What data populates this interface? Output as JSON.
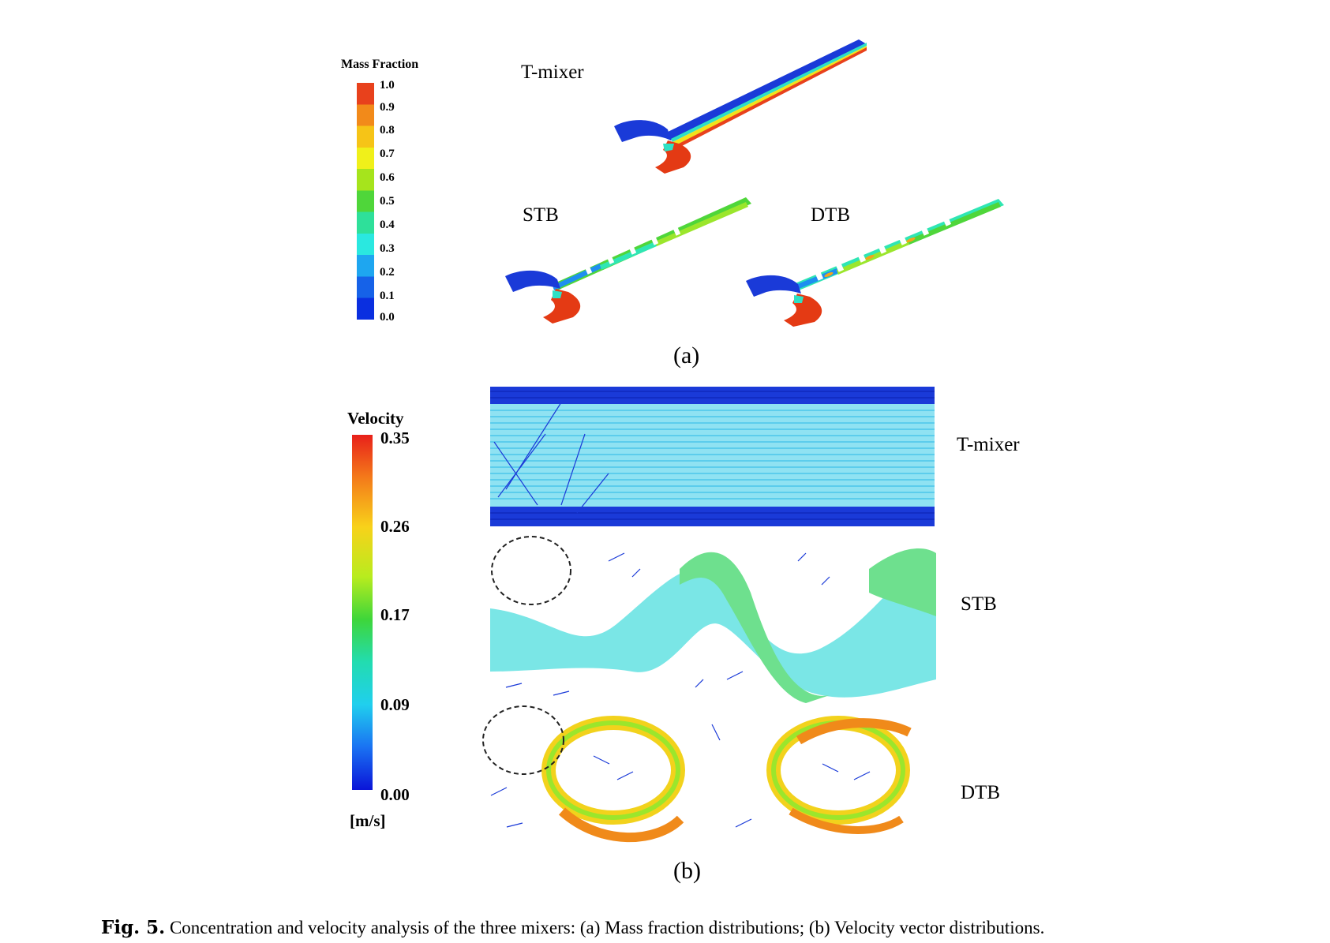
{
  "panel_a": {
    "colorbar": {
      "title": "Mass Fraction",
      "ticks": [
        "1.0",
        "0.9",
        "0.8",
        "0.7",
        "0.6",
        "0.5",
        "0.4",
        "0.3",
        "0.2",
        "0.1",
        "0.0"
      ]
    },
    "mixers": [
      "T-mixer",
      "STB",
      "DTB"
    ],
    "label": "(a)"
  },
  "panel_b": {
    "colorbar": {
      "title": "Velocity",
      "ticks": [
        "0.35",
        "0.26",
        "0.17",
        "0.09",
        "0.00"
      ],
      "unit": "[m/s]"
    },
    "mixers": [
      "T-mixer",
      "STB",
      "DTB"
    ],
    "label": "(b)"
  },
  "caption": {
    "prefix": "Fig. 5.",
    "text": "Concentration and velocity analysis of the three mixers: (a) Mass fraction distributions; (b) Velocity vector distributions."
  },
  "colors": {
    "scale": [
      "#0a2fe0",
      "#1e7ff0",
      "#27d6ef",
      "#2fe6b4",
      "#4ee24c",
      "#9be62c",
      "#f2f21c",
      "#f4a41a",
      "#ec3a10"
    ],
    "low": "#1a3ad8",
    "high": "#e43a14"
  }
}
